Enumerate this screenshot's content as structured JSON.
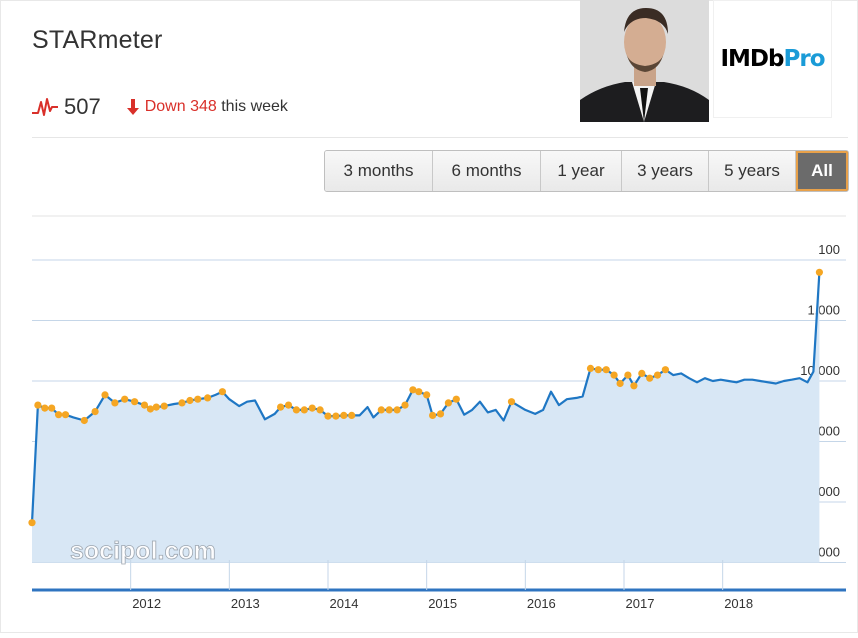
{
  "header": {
    "title": "STARmeter",
    "rank": "507",
    "change_direction": "Down",
    "change_amount": "348",
    "change_suffix": "this week",
    "down_color": "#d9302a"
  },
  "logo": {
    "brand": "IMDb",
    "suffix": "Pro"
  },
  "range_buttons": [
    {
      "label": "3 months",
      "active": false
    },
    {
      "label": "6 months",
      "active": false
    },
    {
      "label": "1 year",
      "active": false
    },
    {
      "label": "3 years",
      "active": false
    },
    {
      "label": "5 years",
      "active": false
    },
    {
      "label": "All",
      "active": true
    }
  ],
  "watermark": "socipol.com",
  "chart_data": {
    "type": "line",
    "scale": "log-reversed",
    "ylim": [
      10000000,
      100
    ],
    "y_ticks": [
      100,
      1000,
      10000,
      100000,
      1000000,
      10000000
    ],
    "y_tick_labels": [
      "100",
      "1,000",
      "10,000",
      "100,000",
      "1,000,000",
      "10,000,000"
    ],
    "x_ticks": [
      2012,
      2013,
      2014,
      2015,
      2016,
      2017,
      2018
    ],
    "x_tick_labels": [
      "2012",
      "2013",
      "2014",
      "2015",
      "2016",
      "2017",
      "2018"
    ],
    "xlim": [
      2011.0,
      2019.25
    ],
    "line_color": "#1f77c4",
    "fill_color": "#d8e7f5",
    "marker_color": "#f5a623",
    "grid": true,
    "series": [
      {
        "values": [
          [
            2011.0,
            2200000,
            1
          ],
          [
            2011.06,
            25000,
            1
          ],
          [
            2011.13,
            28000,
            1
          ],
          [
            2011.2,
            28000,
            1
          ],
          [
            2011.27,
            36000,
            1
          ],
          [
            2011.34,
            36000,
            1
          ],
          [
            2011.42,
            40000,
            0
          ],
          [
            2011.53,
            45000,
            1
          ],
          [
            2011.64,
            32000,
            1
          ],
          [
            2011.74,
            17000,
            1
          ],
          [
            2011.84,
            23000,
            1
          ],
          [
            2011.94,
            20000,
            1
          ],
          [
            2012.04,
            22000,
            1
          ],
          [
            2012.14,
            25000,
            1
          ],
          [
            2012.2,
            29000,
            1
          ],
          [
            2012.26,
            27000,
            1
          ],
          [
            2012.34,
            26000,
            1
          ],
          [
            2012.44,
            24000,
            0
          ],
          [
            2012.52,
            23000,
            1
          ],
          [
            2012.6,
            21000,
            1
          ],
          [
            2012.68,
            20000,
            1
          ],
          [
            2012.78,
            19000,
            1
          ],
          [
            2012.86,
            17000,
            0
          ],
          [
            2012.93,
            15000,
            1
          ],
          [
            2013.0,
            20000,
            0
          ],
          [
            2013.1,
            26000,
            0
          ],
          [
            2013.18,
            22000,
            0
          ],
          [
            2013.26,
            21000,
            0
          ],
          [
            2013.36,
            43000,
            0
          ],
          [
            2013.46,
            35000,
            0
          ],
          [
            2013.52,
            27000,
            1
          ],
          [
            2013.6,
            25000,
            1
          ],
          [
            2013.68,
            30000,
            1
          ],
          [
            2013.76,
            30000,
            1
          ],
          [
            2013.84,
            28000,
            1
          ],
          [
            2013.92,
            30000,
            1
          ],
          [
            2014.0,
            38000,
            1
          ],
          [
            2014.08,
            38000,
            1
          ],
          [
            2014.16,
            37000,
            1
          ],
          [
            2014.24,
            37000,
            1
          ],
          [
            2014.32,
            37000,
            0
          ],
          [
            2014.4,
            27000,
            0
          ],
          [
            2014.46,
            40000,
            0
          ],
          [
            2014.54,
            30000,
            1
          ],
          [
            2014.62,
            30000,
            1
          ],
          [
            2014.7,
            30000,
            1
          ],
          [
            2014.78,
            25000,
            1
          ],
          [
            2014.86,
            14000,
            1
          ],
          [
            2014.92,
            15000,
            1
          ],
          [
            2015.0,
            17000,
            1
          ],
          [
            2015.06,
            37000,
            1
          ],
          [
            2015.14,
            35000,
            1
          ],
          [
            2015.22,
            23000,
            1
          ],
          [
            2015.3,
            20000,
            1
          ],
          [
            2015.38,
            36000,
            0
          ],
          [
            2015.46,
            30000,
            0
          ],
          [
            2015.54,
            22000,
            0
          ],
          [
            2015.62,
            33000,
            0
          ],
          [
            2015.7,
            30000,
            0
          ],
          [
            2015.78,
            45000,
            0
          ],
          [
            2015.86,
            22000,
            1
          ],
          [
            2016.0,
            30000,
            0
          ],
          [
            2016.1,
            35000,
            0
          ],
          [
            2016.18,
            30000,
            0
          ],
          [
            2016.26,
            15000,
            0
          ],
          [
            2016.34,
            25000,
            0
          ],
          [
            2016.42,
            20000,
            0
          ],
          [
            2016.52,
            19000,
            0
          ],
          [
            2016.58,
            18000,
            0
          ],
          [
            2016.66,
            6200,
            1
          ],
          [
            2016.74,
            6500,
            1
          ],
          [
            2016.82,
            6500,
            1
          ],
          [
            2016.9,
            8000,
            1
          ],
          [
            2016.96,
            11000,
            1
          ],
          [
            2017.04,
            8000,
            1
          ],
          [
            2017.1,
            12000,
            1
          ],
          [
            2017.18,
            7500,
            1
          ],
          [
            2017.26,
            9000,
            1
          ],
          [
            2017.34,
            8000,
            1
          ],
          [
            2017.42,
            6500,
            1
          ],
          [
            2017.5,
            8000,
            0
          ],
          [
            2017.58,
            7500,
            0
          ],
          [
            2017.66,
            9000,
            0
          ],
          [
            2017.74,
            10500,
            0
          ],
          [
            2017.82,
            9000,
            0
          ],
          [
            2017.9,
            10000,
            0
          ],
          [
            2017.98,
            9500,
            0
          ],
          [
            2018.06,
            10000,
            0
          ],
          [
            2018.14,
            10500,
            0
          ],
          [
            2018.22,
            9500,
            0
          ],
          [
            2018.3,
            9500,
            0
          ],
          [
            2018.38,
            10000,
            0
          ],
          [
            2018.46,
            10500,
            0
          ],
          [
            2018.54,
            11000,
            0
          ],
          [
            2018.62,
            10000,
            0
          ],
          [
            2018.7,
            9500,
            0
          ],
          [
            2018.78,
            9000,
            0
          ],
          [
            2018.86,
            10500,
            0
          ],
          [
            2018.92,
            7000,
            0
          ],
          [
            2018.98,
            160,
            1
          ]
        ]
      }
    ]
  }
}
